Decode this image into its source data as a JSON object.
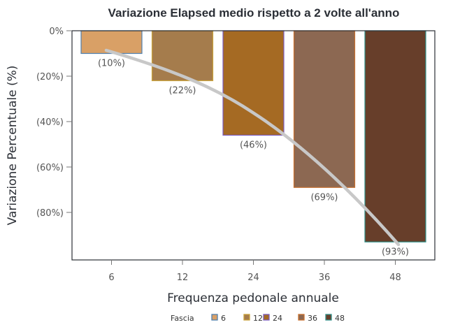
{
  "chart_data": {
    "type": "bar",
    "title": "Variazione Elapsed medio rispetto a 2 volte all'anno",
    "xlabel": "Frequenza pedonale annuale",
    "ylabel": "Variazione Percentuale (%)",
    "categories": [
      "6",
      "12",
      "24",
      "36",
      "48"
    ],
    "values": [
      -10,
      -22,
      -46,
      -69,
      -93
    ],
    "data_labels": [
      "(10%)",
      "(22%)",
      "(46%)",
      "(69%)",
      "(93%)"
    ],
    "y_ticks": [
      0,
      -20,
      -40,
      -60,
      -80
    ],
    "y_tick_labels": [
      "0%",
      "(20%)",
      "(40%)",
      "(60%)",
      "(80%)"
    ],
    "ylim": [
      -101,
      0
    ],
    "grid": false,
    "trend_line": {
      "type": "curve",
      "color": "#c8c8c8"
    },
    "legend": {
      "title": "Fascia",
      "position": "bottom",
      "entries": [
        {
          "label": "6",
          "fill": "#d9a066",
          "border": "#4f7fae"
        },
        {
          "label": "12",
          "fill": "#a57c4c",
          "border": "#c9a23a"
        },
        {
          "label": "24",
          "fill": "#a56a23",
          "border": "#7a5cc0"
        },
        {
          "label": "36",
          "fill": "#8c6852",
          "border": "#c8702e"
        },
        {
          "label": "48",
          "fill": "#673e2a",
          "border": "#2f8f88"
        }
      ]
    }
  }
}
